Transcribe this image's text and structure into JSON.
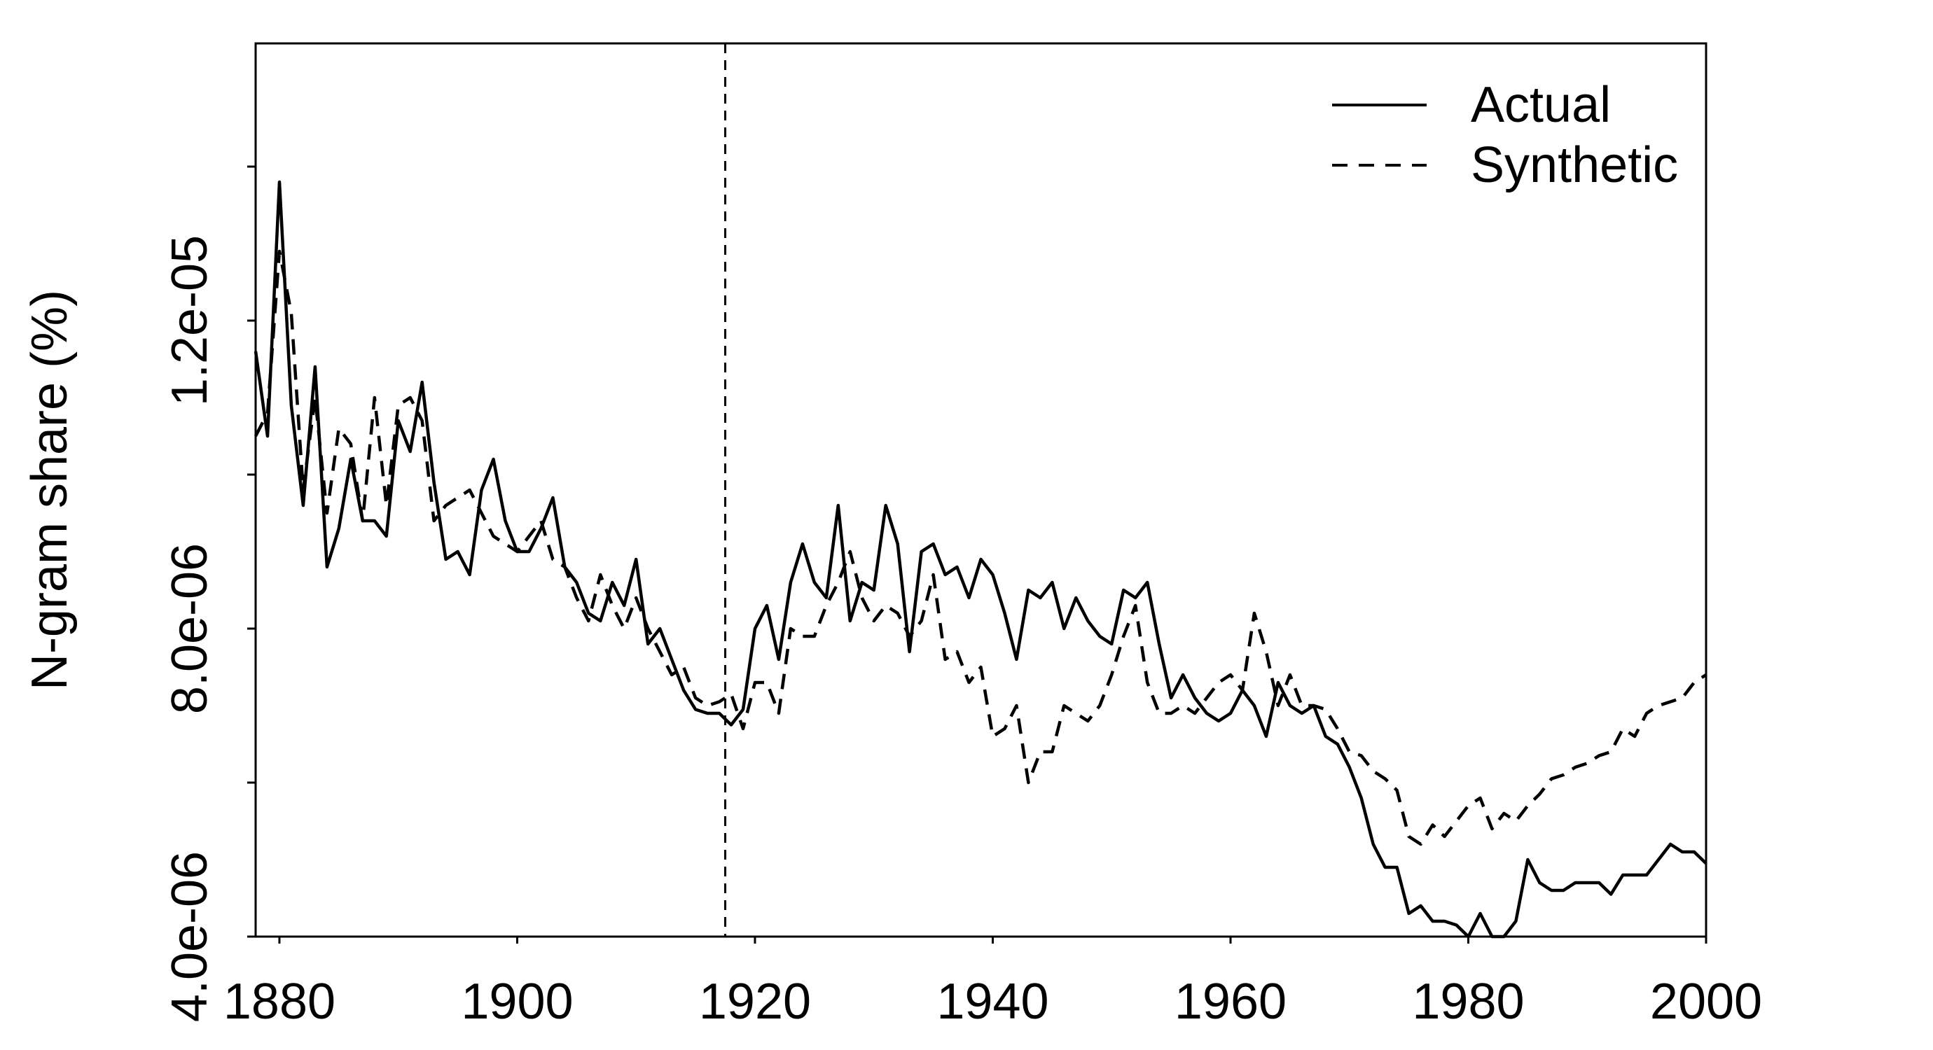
{
  "chart_data": {
    "type": "line",
    "title": "",
    "xlabel": "",
    "ylabel": "N-gram share (%)",
    "xlim": [
      1878,
      2000
    ],
    "ylim": [
      4e-06,
      1.56e-05
    ],
    "x_ticks": [
      1880,
      1900,
      1920,
      1940,
      1960,
      1980,
      2000
    ],
    "x_tick_labels": [
      "1880",
      "1900",
      "1920",
      "1940",
      "1960",
      "1980",
      "2000"
    ],
    "y_ticks": [
      4e-06,
      6e-06,
      8e-06,
      1e-05,
      1.2e-05,
      1.4e-05
    ],
    "y_tick_labels": [
      "4.0e-06",
      "",
      "8.0e-06",
      "",
      "1.2e-05",
      ""
    ],
    "grid": false,
    "legend_position": "top-right",
    "treatment_year": 1917.5,
    "series": [
      {
        "name": "Actual",
        "style": "solid",
        "x": [
          1878,
          1879,
          1880,
          1881,
          1882,
          1883,
          1884,
          1885,
          1886,
          1887,
          1888,
          1889,
          1890,
          1891,
          1892,
          1893,
          1894,
          1895,
          1896,
          1897,
          1898,
          1899,
          1900,
          1901,
          1902,
          1903,
          1904,
          1905,
          1906,
          1907,
          1908,
          1909,
          1910,
          1911,
          1912,
          1913,
          1914,
          1915,
          1916,
          1917,
          1918,
          1919,
          1920,
          1921,
          1922,
          1923,
          1924,
          1925,
          1926,
          1927,
          1928,
          1929,
          1930,
          1931,
          1932,
          1933,
          1934,
          1935,
          1936,
          1937,
          1938,
          1939,
          1940,
          1941,
          1942,
          1943,
          1944,
          1945,
          1946,
          1947,
          1948,
          1949,
          1950,
          1951,
          1952,
          1953,
          1954,
          1955,
          1956,
          1957,
          1958,
          1959,
          1960,
          1961,
          1962,
          1963,
          1964,
          1965,
          1966,
          1967,
          1968,
          1969,
          1970,
          1971,
          1972,
          1973,
          1974,
          1975,
          1976,
          1977,
          1978,
          1979,
          1980,
          1981,
          1982,
          1983,
          1984,
          1985,
          1986,
          1987,
          1988,
          1989,
          1990,
          1991,
          1992,
          1993,
          1994,
          1995,
          1996,
          1997,
          1998,
          1999,
          2000
        ],
        "y": [
          1.16e-05,
          1.05e-05,
          1.38e-05,
          1.09e-05,
          9.6e-06,
          1.14e-05,
          8.8e-06,
          9.3e-06,
          1.02e-05,
          9.4e-06,
          9.4e-06,
          9.2e-06,
          1.07e-05,
          1.03e-05,
          1.12e-05,
          9.9e-06,
          8.9e-06,
          9e-06,
          8.7e-06,
          9.8e-06,
          1.02e-05,
          9.4e-06,
          9e-06,
          9e-06,
          9.3e-06,
          9.7e-06,
          8.8e-06,
          8.6e-06,
          8.2e-06,
          8.1e-06,
          8.6e-06,
          8.3e-06,
          8.9e-06,
          7.8e-06,
          8e-06,
          7.6e-06,
          7.2e-06,
          6.95e-06,
          6.9e-06,
          6.9e-06,
          6.75e-06,
          6.95e-06,
          8e-06,
          8.3e-06,
          7.6e-06,
          8.6e-06,
          9.1e-06,
          8.6e-06,
          8.4e-06,
          9.6e-06,
          8.1e-06,
          8.6e-06,
          8.5e-06,
          9.6e-06,
          9.1e-06,
          7.7e-06,
          9e-06,
          9.1e-06,
          8.7e-06,
          8.8e-06,
          8.4e-06,
          8.9e-06,
          8.7e-06,
          8.2e-06,
          7.6e-06,
          8.5e-06,
          8.4e-06,
          8.6e-06,
          8e-06,
          8.4e-06,
          8.1e-06,
          7.9e-06,
          7.8e-06,
          8.5e-06,
          8.4e-06,
          8.6e-06,
          7.8e-06,
          7.1e-06,
          7.4e-06,
          7.1e-06,
          6.9e-06,
          6.8e-06,
          6.9e-06,
          7.2e-06,
          7e-06,
          6.6e-06,
          7.3e-06,
          7e-06,
          6.9e-06,
          7e-06,
          6.6e-06,
          6.5e-06,
          6.2e-06,
          5.8e-06,
          5.2e-06,
          4.9e-06,
          4.9e-06,
          4.3e-06,
          4.4e-06,
          4.2e-06,
          4.2e-06,
          4.15e-06,
          4e-06,
          4.3e-06,
          4e-06,
          3.8e-06,
          4.2e-06,
          5e-06,
          4.7e-06,
          4.6e-06,
          4.6e-06,
          4.7e-06,
          4.7e-06,
          4.7e-06,
          4.55e-06,
          4.8e-06,
          4.8e-06,
          4.8e-06,
          5e-06,
          5.2e-06,
          5.1e-06,
          5.1e-06,
          4.95e-06
        ]
      },
      {
        "name": "Synthetic",
        "style": "dashed",
        "x": [
          1878,
          1879,
          1880,
          1881,
          1882,
          1883,
          1884,
          1885,
          1886,
          1887,
          1888,
          1889,
          1890,
          1891,
          1892,
          1893,
          1894,
          1895,
          1896,
          1897,
          1898,
          1899,
          1900,
          1901,
          1902,
          1903,
          1904,
          1905,
          1906,
          1907,
          1908,
          1909,
          1910,
          1911,
          1912,
          1913,
          1914,
          1915,
          1916,
          1917,
          1918,
          1919,
          1920,
          1921,
          1922,
          1923,
          1924,
          1925,
          1926,
          1927,
          1928,
          1929,
          1930,
          1931,
          1932,
          1933,
          1934,
          1935,
          1936,
          1937,
          1938,
          1939,
          1940,
          1941,
          1942,
          1943,
          1944,
          1945,
          1946,
          1947,
          1948,
          1949,
          1950,
          1951,
          1952,
          1953,
          1954,
          1955,
          1956,
          1957,
          1958,
          1959,
          1960,
          1961,
          1962,
          1963,
          1964,
          1965,
          1966,
          1967,
          1968,
          1969,
          1970,
          1971,
          1972,
          1973,
          1974,
          1975,
          1976,
          1977,
          1978,
          1979,
          1980,
          1981,
          1982,
          1983,
          1984,
          1985,
          1986,
          1987,
          1988,
          1989,
          1990,
          1991,
          1992,
          1993,
          1994,
          1995,
          1996,
          1997,
          1998,
          1999,
          2000
        ],
        "y": [
          1.05e-05,
          1.08e-05,
          1.29e-05,
          1.21e-05,
          9.8e-06,
          1.1e-05,
          9.5e-06,
          1.06e-05,
          1.04e-05,
          9.4e-06,
          1.1e-05,
          9.6e-06,
          1.09e-05,
          1.1e-05,
          1.07e-05,
          9.4e-06,
          9.6e-06,
          9.7e-06,
          9.8e-06,
          9.5e-06,
          9.2e-06,
          9.1e-06,
          9e-06,
          9.2e-06,
          9.4e-06,
          8.9e-06,
          8.8e-06,
          8.4e-06,
          8.1e-06,
          8.7e-06,
          8.3e-06,
          8e-06,
          8.4e-06,
          8e-06,
          7.7e-06,
          7.4e-06,
          7.5e-06,
          7.1e-06,
          7e-06,
          7.05e-06,
          7.15e-06,
          6.7e-06,
          7.3e-06,
          7.3e-06,
          6.9e-06,
          8e-06,
          7.9e-06,
          7.9e-06,
          8.3e-06,
          8.6e-06,
          9e-06,
          8.4e-06,
          8.1e-06,
          8.3e-06,
          8.2e-06,
          7.9e-06,
          8.1e-06,
          8.7e-06,
          7.6e-06,
          7.7e-06,
          7.3e-06,
          7.5e-06,
          6.6e-06,
          6.7e-06,
          7e-06,
          6e-06,
          6.4e-06,
          6.4e-06,
          7e-06,
          6.9e-06,
          6.8e-06,
          7e-06,
          7.4e-06,
          7.9e-06,
          8.3e-06,
          7.3e-06,
          6.9e-06,
          6.9e-06,
          7e-06,
          6.9e-06,
          7.1e-06,
          7.3e-06,
          7.4e-06,
          7.2e-06,
          8.2e-06,
          7.7e-06,
          7e-06,
          7.4e-06,
          7e-06,
          7e-06,
          6.95e-06,
          6.7e-06,
          6.4e-06,
          6.35e-06,
          6.15e-06,
          6.05e-06,
          5.9e-06,
          5.3e-06,
          5.2e-06,
          5.45e-06,
          5.3e-06,
          5.5e-06,
          5.7e-06,
          5.8e-06,
          5.4e-06,
          5.6e-06,
          5.5e-06,
          5.7e-06,
          5.85e-06,
          6.05e-06,
          6.1e-06,
          6.2e-06,
          6.25e-06,
          6.35e-06,
          6.4e-06,
          6.7e-06,
          6.6e-06,
          6.9e-06,
          7e-06,
          7.05e-06,
          7.1e-06,
          7.3e-06,
          7.4e-06
        ]
      }
    ]
  }
}
